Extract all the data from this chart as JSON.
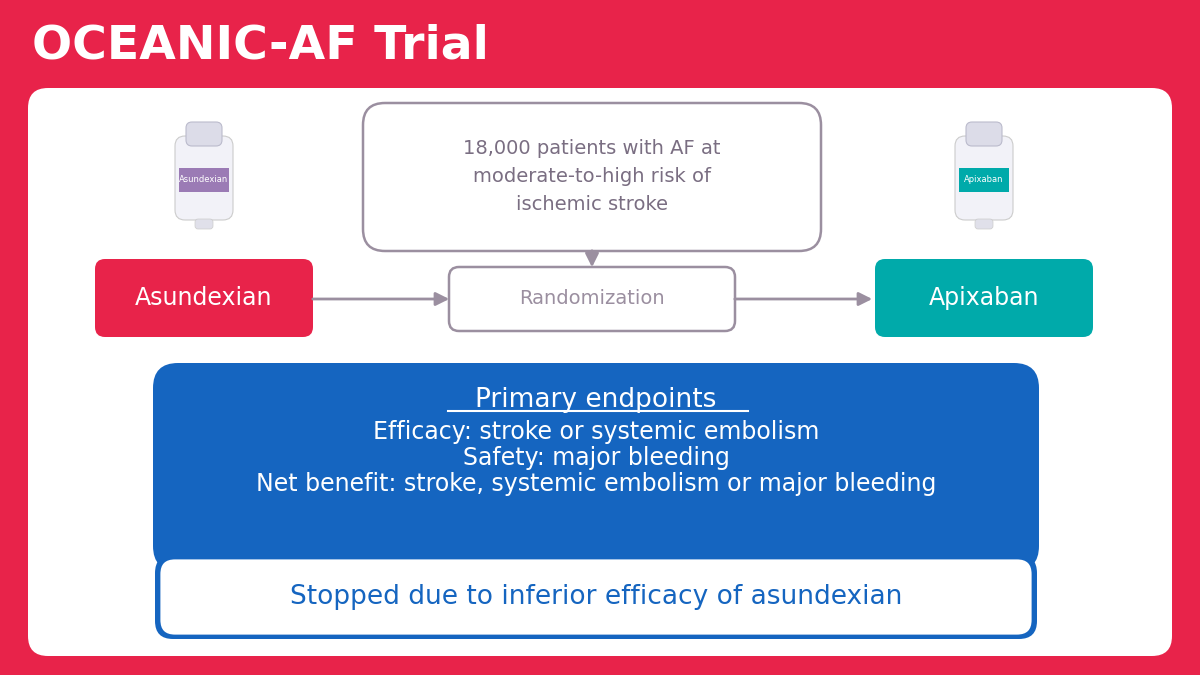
{
  "title": "OCEANIC-AF Trial",
  "title_color": "#FFFFFF",
  "title_bg_color": "#E8234A",
  "bg_color": "#E8234A",
  "white_panel_color": "#FFFFFF",
  "patient_box_text": "18,000 patients with AF at\nmoderate-to-high risk of\nischemic stroke",
  "patient_box_border_color": "#9B8FA0",
  "patient_box_text_color": "#7A6E82",
  "randomization_box_text": "Randomization",
  "randomization_border_color": "#9B8FA0",
  "randomization_text_color": "#9B8FA0",
  "asundexian_label": "Asundexian",
  "asundexian_box_color": "#E8234A",
  "asundexian_text_color": "#FFFFFF",
  "apixaban_label": "Apixaban",
  "apixaban_box_color": "#00AAAA",
  "apixaban_text_color": "#FFFFFF",
  "blue_box_color": "#1565C0",
  "blue_box_text_color": "#FFFFFF",
  "endpoints_title": "Primary endpoints",
  "endpoint1": "Efficacy: stroke or systemic embolism",
  "endpoint2": "Safety: major bleeding",
  "endpoint3": "Net benefit: stroke, systemic embolism or major bleeding",
  "stopped_text": "Stopped due to inferior efficacy of asundexian",
  "stopped_text_color": "#1565C0",
  "stopped_box_color": "#FFFFFF",
  "arrow_color": "#9B8FA0",
  "underline_color": "#FFFFFF"
}
